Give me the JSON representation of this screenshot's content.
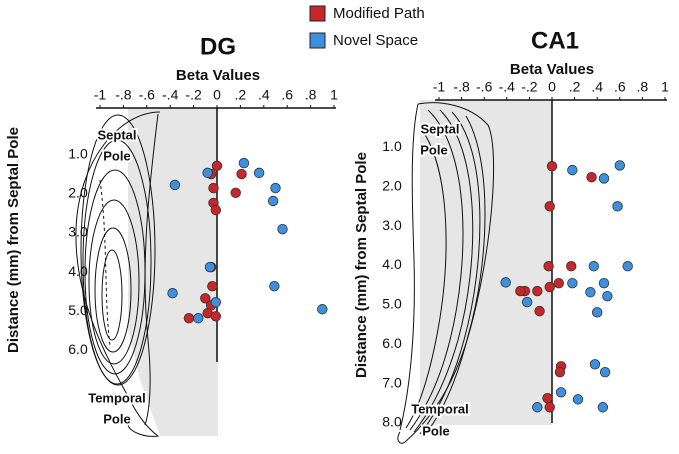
{
  "legend": [
    "Modified Path",
    "Novel Space"
  ],
  "chart_data": [
    {
      "type": "scatter",
      "title": "DG",
      "xlabel": "Beta Values",
      "ylabel": "Distance (mm) from Septal Pole",
      "septal_label": [
        "Septal",
        "Pole"
      ],
      "temporal_label": [
        "Temporal",
        "Pole"
      ],
      "xlim": [
        -1,
        1
      ],
      "xticks": [
        -1,
        {
          "value": -0.8,
          "label": "-.8"
        },
        {
          "value": -0.6,
          "label": "-.6"
        },
        {
          "value": -0.4,
          "label": "-.4"
        },
        {
          "value": -0.2,
          "label": "-.2"
        },
        0,
        {
          "value": 0.2,
          "label": ".2"
        },
        {
          "value": 0.4,
          "label": ".4"
        },
        {
          "value": 0.6,
          "label": ".6"
        },
        {
          "value": 0.8,
          "label": ".8"
        },
        1
      ],
      "ylim": [
        -0.2,
        6.3
      ],
      "y_inverted": true,
      "yticks": [
        {
          "value": 1,
          "label": "1.0"
        },
        {
          "value": 2,
          "label": "2.0"
        },
        {
          "value": 3,
          "label": "3.0"
        },
        {
          "value": 4,
          "label": "4.0"
        },
        {
          "value": 5,
          "label": "5.0"
        },
        {
          "value": 6,
          "label": "6.0"
        }
      ],
      "series": [
        {
          "name": "Modified Path",
          "color": "#c8262a",
          "x": [
            0.0,
            -0.05,
            0.21,
            -0.03,
            0.16,
            -0.03,
            -0.01,
            -0.05,
            -0.04,
            -0.1,
            -0.05,
            -0.08,
            -0.01,
            -0.24
          ],
          "values": [
            1.28,
            1.49,
            1.49,
            1.85,
            1.97,
            2.23,
            2.41,
            3.87,
            4.36,
            4.67,
            4.85,
            5.05,
            5.13,
            5.18
          ]
        },
        {
          "name": "Novel Space",
          "color": "#3d8fe0",
          "x": [
            -0.36,
            -0.08,
            0.23,
            0.36,
            0.5,
            0.48,
            0.56,
            -0.06,
            -0.38,
            0.49,
            0.9,
            -0.01,
            -0.16
          ],
          "values": [
            1.77,
            1.46,
            1.21,
            1.46,
            1.85,
            2.18,
            2.9,
            3.87,
            4.54,
            4.36,
            4.95,
            4.77,
            5.18
          ]
        }
      ]
    },
    {
      "type": "scatter",
      "title": "CA1",
      "xlabel": "Beta Values",
      "ylabel": "Distance (mm) from Septal Pole",
      "septal_label": [
        "Septal",
        "Pole"
      ],
      "temporal_label": [
        "Temporal",
        "Pole"
      ],
      "xlim": [
        -1,
        1
      ],
      "xticks": [
        -1,
        {
          "value": -0.8,
          "label": "-.8"
        },
        {
          "value": -0.6,
          "label": "-.6"
        },
        {
          "value": -0.4,
          "label": "-.4"
        },
        {
          "value": -0.2,
          "label": "-.2"
        },
        0,
        {
          "value": 0.2,
          "label": ".2"
        },
        {
          "value": 0.4,
          "label": ".4"
        },
        {
          "value": 0.6,
          "label": ".6"
        },
        {
          "value": 0.8,
          "label": ".8"
        },
        1
      ],
      "ylim": [
        -0.2,
        8.0
      ],
      "y_inverted": true,
      "yticks": [
        {
          "value": 1,
          "label": "1.0"
        },
        {
          "value": 2,
          "label": "2.0"
        },
        {
          "value": 3,
          "label": "3.0"
        },
        {
          "value": 4,
          "label": "4.0"
        },
        {
          "value": 5,
          "label": "5.0"
        },
        {
          "value": 6,
          "label": "6.0"
        },
        {
          "value": 7,
          "label": "7.0"
        },
        {
          "value": 8,
          "label": "8.0"
        }
      ],
      "series": [
        {
          "name": "Modified Path",
          "color": "#c8262a",
          "x": [
            0.0,
            0.35,
            -0.02,
            0.17,
            -0.03,
            0.06,
            -0.02,
            -0.13,
            -0.24,
            -0.28,
            -0.11,
            0.08,
            0.07,
            -0.04,
            -0.02
          ],
          "values": [
            1.48,
            1.76,
            2.5,
            4.02,
            4.02,
            4.45,
            4.55,
            4.65,
            4.65,
            4.65,
            5.16,
            6.56,
            6.71,
            7.37,
            7.6
          ]
        },
        {
          "name": "Novel Space",
          "color": "#3d8fe0",
          "x": [
            0.18,
            0.6,
            0.46,
            0.58,
            0.37,
            0.67,
            -0.41,
            0.18,
            0.46,
            0.49,
            0.34,
            -0.22,
            0.4,
            0.38,
            0.47,
            0.08,
            0.23,
            0.45,
            -0.13
          ],
          "values": [
            1.58,
            1.46,
            1.79,
            2.5,
            4.02,
            4.02,
            4.43,
            4.45,
            4.45,
            4.78,
            4.68,
            4.93,
            5.19,
            6.51,
            6.71,
            7.22,
            7.4,
            7.6,
            7.6
          ]
        }
      ]
    }
  ]
}
